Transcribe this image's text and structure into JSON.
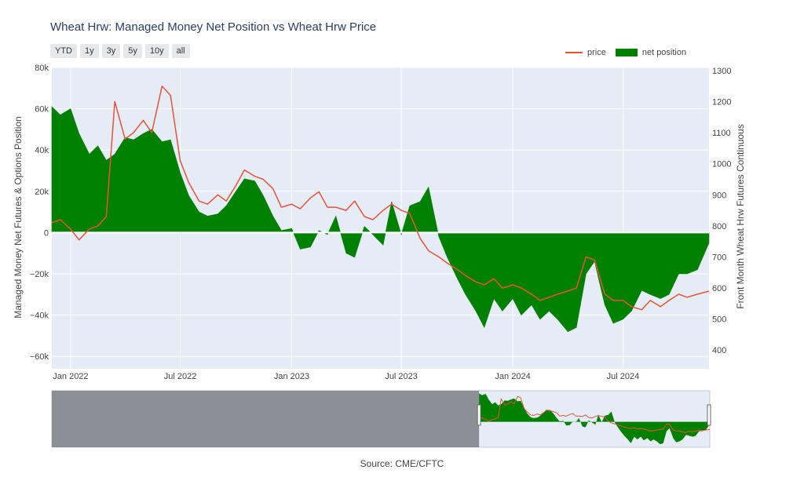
{
  "chart_data": {
    "type": "area",
    "title": "Wheat Hrw: Managed Money Net Position vs Wheat Hrw Price",
    "y_left_label": "Managed Money Net Futures & Options Position",
    "y_right_label": "Front Month Wheat Hrw Futures Continuous",
    "y_left_range": [
      -66000,
      80000
    ],
    "y_right_range": [
      340,
      1310
    ],
    "y_left_ticks": [
      "80k",
      "60k",
      "40k",
      "20k",
      "0",
      "−20k",
      "−40k",
      "−60k"
    ],
    "y_right_ticks": [
      "1300",
      "1200",
      "1100",
      "1000",
      "900",
      "800",
      "700",
      "600",
      "500",
      "400"
    ],
    "x_ticks": [
      {
        "date": "2022-01-01",
        "label": "Jan 2022"
      },
      {
        "date": "2022-07-01",
        "label": "Jul 2022"
      },
      {
        "date": "2023-01-01",
        "label": "Jan 2023"
      },
      {
        "date": "2023-07-01",
        "label": "Jul 2023"
      },
      {
        "date": "2024-01-01",
        "label": "Jan 2024"
      },
      {
        "date": "2024-07-01",
        "label": "Jul 2024"
      }
    ],
    "x_range": [
      "2021-12-01",
      "2024-11-20"
    ],
    "grid": true,
    "legend_position": "top-right",
    "series": [
      {
        "name": "net position",
        "axis": "left",
        "style": "fill-to-zero",
        "color": "#008000",
        "points": [
          [
            "2021-12-01",
            61000
          ],
          [
            "2021-12-15",
            57000
          ],
          [
            "2022-01-01",
            60000
          ],
          [
            "2022-01-15",
            48000
          ],
          [
            "2022-02-01",
            38000
          ],
          [
            "2022-02-15",
            42000
          ],
          [
            "2022-03-01",
            35000
          ],
          [
            "2022-03-15",
            38000
          ],
          [
            "2022-04-01",
            46000
          ],
          [
            "2022-04-15",
            45000
          ],
          [
            "2022-05-01",
            48000
          ],
          [
            "2022-05-15",
            50000
          ],
          [
            "2022-06-01",
            44000
          ],
          [
            "2022-06-15",
            45000
          ],
          [
            "2022-07-01",
            29000
          ],
          [
            "2022-07-15",
            18000
          ],
          [
            "2022-08-01",
            10000
          ],
          [
            "2022-08-15",
            8000
          ],
          [
            "2022-09-01",
            9000
          ],
          [
            "2022-09-15",
            13000
          ],
          [
            "2022-10-01",
            20000
          ],
          [
            "2022-10-15",
            26000
          ],
          [
            "2022-11-01",
            25000
          ],
          [
            "2022-11-15",
            18000
          ],
          [
            "2022-12-01",
            8000
          ],
          [
            "2022-12-15",
            1000
          ],
          [
            "2023-01-01",
            2000
          ],
          [
            "2023-01-15",
            -8000
          ],
          [
            "2023-02-01",
            -7000
          ],
          [
            "2023-02-15",
            1000
          ],
          [
            "2023-03-01",
            -1000
          ],
          [
            "2023-03-15",
            8000
          ],
          [
            "2023-04-01",
            -10000
          ],
          [
            "2023-04-15",
            -12000
          ],
          [
            "2023-05-01",
            3000
          ],
          [
            "2023-05-15",
            -1000
          ],
          [
            "2023-06-01",
            -6000
          ],
          [
            "2023-06-15",
            15000
          ],
          [
            "2023-07-01",
            -1000
          ],
          [
            "2023-07-15",
            13000
          ],
          [
            "2023-08-01",
            15000
          ],
          [
            "2023-08-15",
            22000
          ],
          [
            "2023-09-01",
            -2000
          ],
          [
            "2023-09-15",
            -12000
          ],
          [
            "2023-10-01",
            -22000
          ],
          [
            "2023-10-15",
            -30000
          ],
          [
            "2023-11-01",
            -38000
          ],
          [
            "2023-11-15",
            -46000
          ],
          [
            "2023-12-01",
            -32000
          ],
          [
            "2023-12-15",
            -38000
          ],
          [
            "2024-01-01",
            -32000
          ],
          [
            "2024-01-15",
            -40000
          ],
          [
            "2024-02-01",
            -35000
          ],
          [
            "2024-02-15",
            -42000
          ],
          [
            "2024-03-01",
            -38000
          ],
          [
            "2024-03-15",
            -42000
          ],
          [
            "2024-04-01",
            -48000
          ],
          [
            "2024-04-15",
            -46000
          ],
          [
            "2024-05-01",
            -20000
          ],
          [
            "2024-05-15",
            -14000
          ],
          [
            "2024-06-01",
            -35000
          ],
          [
            "2024-06-15",
            -44000
          ],
          [
            "2024-07-01",
            -42000
          ],
          [
            "2024-07-15",
            -38000
          ],
          [
            "2024-08-01",
            -28000
          ],
          [
            "2024-08-15",
            -30000
          ],
          [
            "2024-09-01",
            -32000
          ],
          [
            "2024-09-15",
            -30000
          ],
          [
            "2024-10-01",
            -20000
          ],
          [
            "2024-10-15",
            -20000
          ],
          [
            "2024-11-01",
            -18000
          ],
          [
            "2024-11-20",
            -5000
          ]
        ]
      },
      {
        "name": "price",
        "axis": "right",
        "style": "line",
        "color": "#e5533c",
        "points": [
          [
            "2021-12-01",
            810
          ],
          [
            "2021-12-15",
            820
          ],
          [
            "2022-01-01",
            790
          ],
          [
            "2022-01-15",
            755
          ],
          [
            "2022-02-01",
            790
          ],
          [
            "2022-02-15",
            800
          ],
          [
            "2022-03-01",
            830
          ],
          [
            "2022-03-15",
            1200
          ],
          [
            "2022-04-01",
            1080
          ],
          [
            "2022-04-15",
            1100
          ],
          [
            "2022-05-01",
            1140
          ],
          [
            "2022-05-15",
            1100
          ],
          [
            "2022-06-01",
            1250
          ],
          [
            "2022-06-15",
            1220
          ],
          [
            "2022-07-01",
            1010
          ],
          [
            "2022-07-15",
            940
          ],
          [
            "2022-08-01",
            880
          ],
          [
            "2022-08-15",
            870
          ],
          [
            "2022-09-01",
            900
          ],
          [
            "2022-09-15",
            880
          ],
          [
            "2022-10-01",
            930
          ],
          [
            "2022-10-15",
            980
          ],
          [
            "2022-11-01",
            960
          ],
          [
            "2022-11-15",
            950
          ],
          [
            "2022-12-01",
            920
          ],
          [
            "2022-12-15",
            860
          ],
          [
            "2023-01-01",
            870
          ],
          [
            "2023-01-15",
            855
          ],
          [
            "2023-02-01",
            890
          ],
          [
            "2023-02-15",
            910
          ],
          [
            "2023-03-01",
            860
          ],
          [
            "2023-03-15",
            860
          ],
          [
            "2023-04-01",
            850
          ],
          [
            "2023-04-15",
            880
          ],
          [
            "2023-05-01",
            830
          ],
          [
            "2023-05-15",
            820
          ],
          [
            "2023-06-01",
            850
          ],
          [
            "2023-06-15",
            870
          ],
          [
            "2023-07-01",
            850
          ],
          [
            "2023-07-15",
            840
          ],
          [
            "2023-08-01",
            760
          ],
          [
            "2023-08-15",
            720
          ],
          [
            "2023-09-01",
            700
          ],
          [
            "2023-09-15",
            680
          ],
          [
            "2023-10-01",
            660
          ],
          [
            "2023-10-15",
            640
          ],
          [
            "2023-11-01",
            620
          ],
          [
            "2023-11-15",
            610
          ],
          [
            "2023-12-01",
            630
          ],
          [
            "2023-12-15",
            600
          ],
          [
            "2024-01-01",
            610
          ],
          [
            "2024-01-15",
            600
          ],
          [
            "2024-02-01",
            580
          ],
          [
            "2024-02-15",
            560
          ],
          [
            "2024-03-01",
            570
          ],
          [
            "2024-03-15",
            580
          ],
          [
            "2024-04-01",
            590
          ],
          [
            "2024-04-15",
            600
          ],
          [
            "2024-05-01",
            700
          ],
          [
            "2024-05-15",
            690
          ],
          [
            "2024-06-01",
            580
          ],
          [
            "2024-06-15",
            560
          ],
          [
            "2024-07-01",
            560
          ],
          [
            "2024-07-15",
            540
          ],
          [
            "2024-08-01",
            530
          ],
          [
            "2024-08-15",
            560
          ],
          [
            "2024-09-01",
            540
          ],
          [
            "2024-09-15",
            560
          ],
          [
            "2024-10-01",
            580
          ],
          [
            "2024-10-15",
            570
          ],
          [
            "2024-11-01",
            580
          ],
          [
            "2024-11-20",
            590
          ]
        ]
      }
    ]
  },
  "ui": {
    "range_buttons": [
      "YTD",
      "1y",
      "3y",
      "5y",
      "10y",
      "all"
    ],
    "source": "Source: CME/CFTC"
  },
  "colors": {
    "plot_bg": "#e5ecf6",
    "grid": "#ffffff",
    "net_position": "#008000",
    "price": "#e5533c",
    "range_mask": "#6e7074",
    "range_handle": "#ffffff"
  },
  "rangeslider": {
    "history_start": "2016-06-01",
    "selected_from": "2021-12-01",
    "selected_to": "2024-11-20"
  }
}
